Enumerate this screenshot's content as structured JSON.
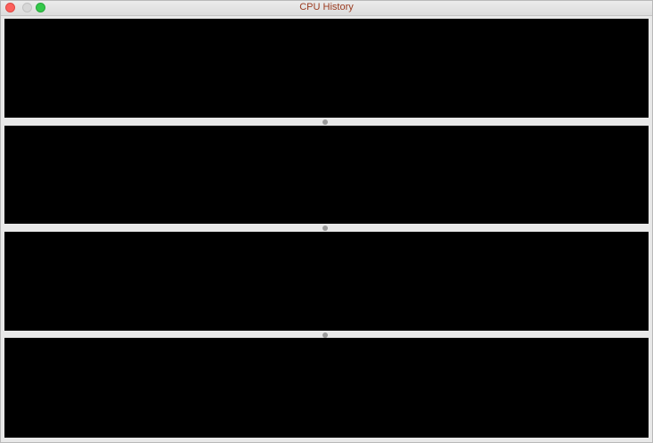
{
  "window": {
    "title": "CPU History"
  },
  "colors": {
    "user": "#84d86a",
    "system": "#b53a3a",
    "background": "#000000"
  },
  "chart_data": [
    {
      "type": "bar",
      "stacked": true,
      "ylim": [
        0,
        100
      ],
      "series": [
        {
          "name": "",
          "values": [
            1
          ]
        },
        {
          "name": "",
          "values": [
            1
          ]
        }
      ]
    },
    {
      "type": "bar",
      "stacked": true,
      "ylim": [
        0,
        100
      ],
      "series": [
        {
          "name": "",
          "values": [
            1
          ]
        },
        {
          "name": "",
          "values": [
            1
          ]
        }
      ]
    },
    {
      "type": "bar",
      "stacked": true,
      "ylim": [
        0,
        100
      ],
      "series": [
        {
          "name": "",
          "values": [
            1
          ]
        },
        {
          "name": "",
          "values": [
            1
          ]
        }
      ]
    },
    {
      "type": "bar",
      "stacked": true,
      "ylim": [
        0,
        100
      ],
      "series": [
        {
          "name": "",
          "values": [
            1
          ]
        },
        {
          "name": "",
          "values": [
            1
          ]
        }
      ]
    }
  ]
}
